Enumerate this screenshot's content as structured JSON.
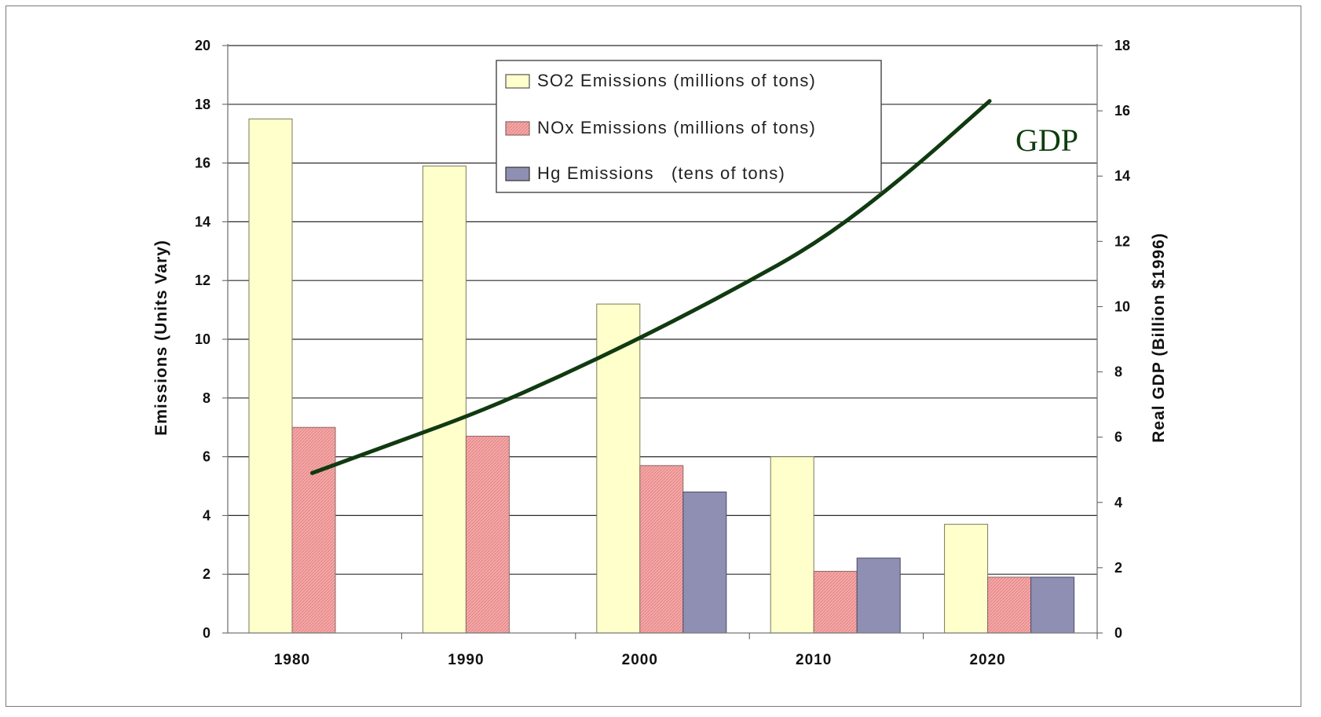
{
  "chart_data": {
    "type": "bar",
    "categories": [
      "1980",
      "1990",
      "2000",
      "2010",
      "2020"
    ],
    "ylabel": "Emissions (Units Vary)",
    "y2label": "Real GDP (Billion $1996)",
    "ylim": [
      0,
      20
    ],
    "y2lim": [
      0,
      18
    ],
    "yticks": [
      "0",
      "2",
      "4",
      "6",
      "8",
      "10",
      "12",
      "14",
      "16",
      "18",
      "20"
    ],
    "y2ticks": [
      "0",
      "2",
      "4",
      "6",
      "8",
      "10",
      "12",
      "14",
      "16",
      "18"
    ],
    "grid": true,
    "legend_position": "top-center",
    "series": [
      {
        "name": "SO2 Emissions (millions of tons)",
        "axis": "left",
        "kind": "bar",
        "color": "#ffffcc",
        "values": [
          17.5,
          15.9,
          11.2,
          6.0,
          3.7
        ]
      },
      {
        "name": "NOx Emissions (millions of tons)",
        "axis": "left",
        "kind": "bar",
        "color": "#f4a3a3",
        "values": [
          7.0,
          6.7,
          5.7,
          2.1,
          1.9
        ]
      },
      {
        "name": "Hg Emissions   (tens of tons)",
        "axis": "left",
        "kind": "bar",
        "color": "#8f8fb3",
        "values": [
          null,
          null,
          4.8,
          2.55,
          1.9
        ]
      }
    ],
    "line": {
      "name": "GDP",
      "axis": "right",
      "color": "#103a10",
      "x": [
        1980,
        1985,
        1990,
        1995,
        2000,
        2005,
        2010,
        2015,
        2020
      ],
      "y": [
        4.9,
        5.85,
        6.8,
        7.95,
        9.2,
        10.55,
        12.0,
        14.0,
        16.3
      ]
    }
  }
}
